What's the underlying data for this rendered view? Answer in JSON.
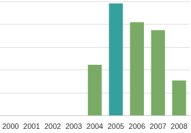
{
  "chart_data": {
    "type": "bar",
    "categories": [
      "2000",
      "2001",
      "2002",
      "2003",
      "2004",
      "2005",
      "2006",
      "2007",
      "2008"
    ],
    "values": [
      0,
      0,
      0,
      0,
      2.23,
      4.91,
      4.09,
      3.74,
      1.54
    ],
    "colors": [
      "#7aab66",
      "#7aab66",
      "#7aab66",
      "#7aab66",
      "#7aab66",
      "#36a19c",
      "#7aab66",
      "#7aab66",
      "#7aab66"
    ],
    "ylim": [
      0,
      5
    ],
    "yticks": [
      0,
      1,
      2,
      3,
      4,
      5
    ],
    "grid": true,
    "tick_labels": "x"
  }
}
